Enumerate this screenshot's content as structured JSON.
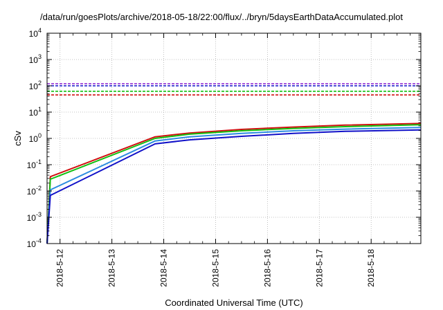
{
  "chart_data": {
    "type": "line",
    "title": "/data/run/goesPlots/archive/2018-05-18/22:00/flux/../bryn/5daysEarthDataAccumulated.plot",
    "xlabel": "Coordinated Universal Time (UTC)",
    "ylabel": "cSv",
    "yscale": "log",
    "ylim": [
      0.0001,
      10000
    ],
    "xlim": [
      "2018-05-11 18:00",
      "2018-05-18 23:00"
    ],
    "x_ticks": [
      "2018-5-12",
      "2018-5-13",
      "2018-5-14",
      "2018-5-15",
      "2018-5-16",
      "2018-5-17",
      "2018-5-18"
    ],
    "y_ticks": [
      {
        "base": "10",
        "exp": "-4"
      },
      {
        "base": "10",
        "exp": "-3"
      },
      {
        "base": "10",
        "exp": "-2"
      },
      {
        "base": "10",
        "exp": "-1"
      },
      {
        "base": "10",
        "exp": "0"
      },
      {
        "base": "10",
        "exp": "1"
      },
      {
        "base": "10",
        "exp": "2"
      },
      {
        "base": "10",
        "exp": "3"
      },
      {
        "base": "10",
        "exp": "4"
      }
    ],
    "grid": true,
    "series": [
      {
        "color": "#d01010",
        "style": "solid",
        "points": [
          [
            "2018-05-11 18:00",
            0.0001
          ],
          [
            "2018-05-11 19:30",
            0.035
          ],
          [
            "2018-05-13 20:00",
            1.15
          ],
          [
            "2018-05-14 12:00",
            1.6
          ],
          [
            "2018-05-15 12:00",
            2.2
          ],
          [
            "2018-05-16 12:00",
            2.7
          ],
          [
            "2018-05-17 12:00",
            3.2
          ],
          [
            "2018-05-18 23:00",
            3.7
          ]
        ]
      },
      {
        "color": "#10c010",
        "style": "solid",
        "points": [
          [
            "2018-05-11 18:00",
            0.0001
          ],
          [
            "2018-05-11 19:30",
            0.028
          ],
          [
            "2018-05-13 20:00",
            1.0
          ],
          [
            "2018-05-14 12:00",
            1.45
          ],
          [
            "2018-05-15 12:00",
            1.95
          ],
          [
            "2018-05-16 12:00",
            2.4
          ],
          [
            "2018-05-17 12:00",
            2.8
          ],
          [
            "2018-05-18 23:00",
            3.3
          ]
        ]
      },
      {
        "color": "#2b8be0",
        "style": "solid",
        "points": [
          [
            "2018-05-11 18:00",
            0.0001
          ],
          [
            "2018-05-11 19:30",
            0.011
          ],
          [
            "2018-05-13 20:00",
            0.8
          ],
          [
            "2018-05-14 12:00",
            1.15
          ],
          [
            "2018-05-15 12:00",
            1.55
          ],
          [
            "2018-05-16 12:00",
            1.95
          ],
          [
            "2018-05-17 12:00",
            2.25
          ],
          [
            "2018-05-18 23:00",
            2.6
          ]
        ]
      },
      {
        "color": "#1010c8",
        "style": "solid",
        "points": [
          [
            "2018-05-11 18:00",
            0.0001
          ],
          [
            "2018-05-11 19:30",
            0.0068
          ],
          [
            "2018-05-13 20:00",
            0.62
          ],
          [
            "2018-05-14 12:00",
            0.88
          ],
          [
            "2018-05-15 12:00",
            1.2
          ],
          [
            "2018-05-16 12:00",
            1.55
          ],
          [
            "2018-05-17 12:00",
            1.85
          ],
          [
            "2018-05-18 23:00",
            2.1
          ]
        ]
      },
      {
        "color": "#8b1fd0",
        "style": "dashed",
        "points": [
          [
            "2018-05-11 18:00",
            120
          ],
          [
            "2018-05-18 23:00",
            120
          ]
        ]
      },
      {
        "color": "#1010c8",
        "style": "dashed",
        "points": [
          [
            "2018-05-11 18:00",
            100
          ],
          [
            "2018-05-18 23:00",
            100
          ]
        ]
      },
      {
        "color": "#10c010",
        "style": "dashed",
        "points": [
          [
            "2018-05-11 18:00",
            62
          ],
          [
            "2018-05-18 23:00",
            62
          ]
        ]
      },
      {
        "color": "#d01010",
        "style": "dashed",
        "points": [
          [
            "2018-05-11 18:00",
            45
          ],
          [
            "2018-05-18 23:00",
            45
          ]
        ]
      }
    ]
  }
}
